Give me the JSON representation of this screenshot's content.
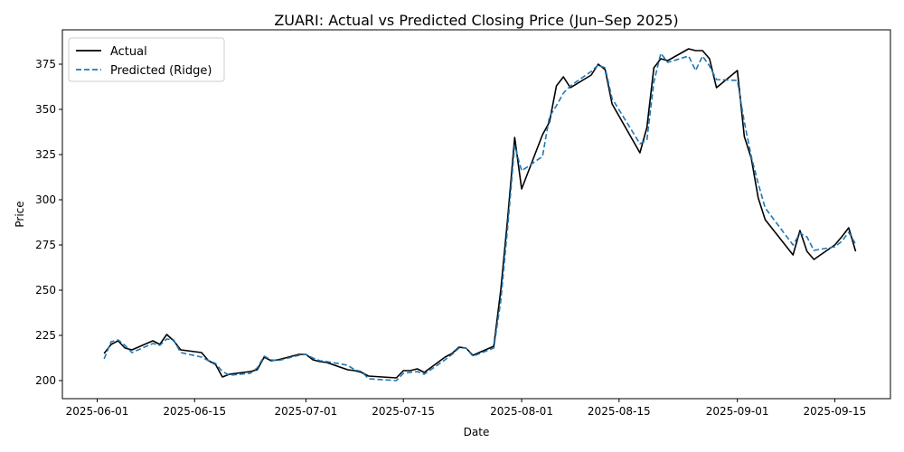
{
  "chart_data": {
    "type": "line",
    "title": "ZUARI: Actual vs Predicted Closing Price (Jun–Sep 2025)",
    "xlabel": "Date",
    "ylabel": "Price",
    "x_axis_type": "date",
    "xlim": [
      "2025-05-27",
      "2025-09-23"
    ],
    "ylim": [
      190,
      394
    ],
    "xticks": [
      "2025-06-01",
      "2025-06-15",
      "2025-07-01",
      "2025-07-15",
      "2025-08-01",
      "2025-08-15",
      "2025-09-01",
      "2025-09-15"
    ],
    "yticks": [
      200,
      225,
      250,
      275,
      300,
      325,
      350,
      375
    ],
    "grid": false,
    "legend_position": "top-left",
    "series": [
      {
        "name": "Actual",
        "color": "#000000",
        "line_style": "solid",
        "points": [
          [
            "2025-06-02",
            215
          ],
          [
            "2025-06-03",
            220
          ],
          [
            "2025-06-04",
            222
          ],
          [
            "2025-06-05",
            218
          ],
          [
            "2025-06-06",
            217
          ],
          [
            "2025-06-09",
            222
          ],
          [
            "2025-06-10",
            220
          ],
          [
            "2025-06-11",
            225.5
          ],
          [
            "2025-06-12",
            222
          ],
          [
            "2025-06-13",
            217
          ],
          [
            "2025-06-16",
            215.5
          ],
          [
            "2025-06-17",
            211
          ],
          [
            "2025-06-18",
            209
          ],
          [
            "2025-06-19",
            202
          ],
          [
            "2025-06-20",
            203.5
          ],
          [
            "2025-06-23",
            205
          ],
          [
            "2025-06-24",
            206
          ],
          [
            "2025-06-25",
            213
          ],
          [
            "2025-06-26",
            211
          ],
          [
            "2025-06-27",
            211.5
          ],
          [
            "2025-06-30",
            214.5
          ],
          [
            "2025-07-01",
            214.5
          ],
          [
            "2025-07-02",
            211.5
          ],
          [
            "2025-07-03",
            210.5
          ],
          [
            "2025-07-04",
            210
          ],
          [
            "2025-07-07",
            206
          ],
          [
            "2025-07-08",
            205.5
          ],
          [
            "2025-07-09",
            204.5
          ],
          [
            "2025-07-10",
            202.5
          ],
          [
            "2025-07-14",
            201.5
          ],
          [
            "2025-07-15",
            205.5
          ],
          [
            "2025-07-16",
            205.5
          ],
          [
            "2025-07-17",
            206.5
          ],
          [
            "2025-07-18",
            204.5
          ],
          [
            "2025-07-21",
            213
          ],
          [
            "2025-07-22",
            215
          ],
          [
            "2025-07-23",
            218.5
          ],
          [
            "2025-07-24",
            218
          ],
          [
            "2025-07-25",
            214
          ],
          [
            "2025-07-28",
            219
          ],
          [
            "2025-07-29",
            250
          ],
          [
            "2025-07-30",
            290
          ],
          [
            "2025-07-31",
            334.5
          ],
          [
            "2025-08-01",
            306
          ],
          [
            "2025-08-04",
            336
          ],
          [
            "2025-08-05",
            343
          ],
          [
            "2025-08-06",
            363
          ],
          [
            "2025-08-07",
            368
          ],
          [
            "2025-08-08",
            362
          ],
          [
            "2025-08-11",
            369
          ],
          [
            "2025-08-12",
            375
          ],
          [
            "2025-08-13",
            372
          ],
          [
            "2025-08-14",
            353
          ],
          [
            "2025-08-18",
            326
          ],
          [
            "2025-08-19",
            340
          ],
          [
            "2025-08-20",
            373
          ],
          [
            "2025-08-21",
            378
          ],
          [
            "2025-08-22",
            377
          ],
          [
            "2025-08-25",
            383.5
          ],
          [
            "2025-08-26",
            382.5
          ],
          [
            "2025-08-27",
            382.5
          ],
          [
            "2025-08-28",
            378
          ],
          [
            "2025-08-29",
            362
          ],
          [
            "2025-09-01",
            371.5
          ],
          [
            "2025-09-02",
            335
          ],
          [
            "2025-09-03",
            323
          ],
          [
            "2025-09-04",
            301
          ],
          [
            "2025-09-05",
            289
          ],
          [
            "2025-09-09",
            269.5
          ],
          [
            "2025-09-10",
            283
          ],
          [
            "2025-09-11",
            271.5
          ],
          [
            "2025-09-12",
            267
          ],
          [
            "2025-09-15",
            275
          ],
          [
            "2025-09-16",
            279.5
          ],
          [
            "2025-09-17",
            284.5
          ],
          [
            "2025-09-18",
            271.5
          ]
        ]
      },
      {
        "name": "Predicted (Ridge)",
        "color": "#1f77b4",
        "line_style": "dashed",
        "points": [
          [
            "2025-06-02",
            212
          ],
          [
            "2025-06-03",
            221.5
          ],
          [
            "2025-06-04",
            222.5
          ],
          [
            "2025-06-05",
            219.5
          ],
          [
            "2025-06-06",
            215.5
          ],
          [
            "2025-06-09",
            220.5
          ],
          [
            "2025-06-10",
            219.5
          ],
          [
            "2025-06-11",
            223
          ],
          [
            "2025-06-12",
            222.5
          ],
          [
            "2025-06-13",
            215.5
          ],
          [
            "2025-06-16",
            213
          ],
          [
            "2025-06-17",
            211
          ],
          [
            "2025-06-18",
            209.5
          ],
          [
            "2025-06-19",
            205
          ],
          [
            "2025-06-20",
            203
          ],
          [
            "2025-06-23",
            204
          ],
          [
            "2025-06-24",
            207
          ],
          [
            "2025-06-25",
            213.5
          ],
          [
            "2025-06-26",
            211.5
          ],
          [
            "2025-06-27",
            211
          ],
          [
            "2025-06-30",
            214
          ],
          [
            "2025-07-01",
            214.5
          ],
          [
            "2025-07-02",
            212.5
          ],
          [
            "2025-07-03",
            211
          ],
          [
            "2025-07-04",
            210.5
          ],
          [
            "2025-07-07",
            208.5
          ],
          [
            "2025-07-08",
            206
          ],
          [
            "2025-07-09",
            205
          ],
          [
            "2025-07-10",
            201
          ],
          [
            "2025-07-14",
            200
          ],
          [
            "2025-07-15",
            204
          ],
          [
            "2025-07-16",
            204.5
          ],
          [
            "2025-07-17",
            205
          ],
          [
            "2025-07-18",
            203.5
          ],
          [
            "2025-07-21",
            211.5
          ],
          [
            "2025-07-22",
            214.5
          ],
          [
            "2025-07-23",
            218
          ],
          [
            "2025-07-24",
            218
          ],
          [
            "2025-07-25",
            213.5
          ],
          [
            "2025-07-28",
            218
          ],
          [
            "2025-07-29",
            244
          ],
          [
            "2025-07-30",
            285
          ],
          [
            "2025-07-31",
            330
          ],
          [
            "2025-08-01",
            316
          ],
          [
            "2025-08-04",
            324
          ],
          [
            "2025-08-05",
            346
          ],
          [
            "2025-08-06",
            352
          ],
          [
            "2025-08-07",
            359
          ],
          [
            "2025-08-08",
            363
          ],
          [
            "2025-08-11",
            371
          ],
          [
            "2025-08-12",
            374.5
          ],
          [
            "2025-08-13",
            373
          ],
          [
            "2025-08-14",
            356
          ],
          [
            "2025-08-18",
            331
          ],
          [
            "2025-08-19",
            333
          ],
          [
            "2025-08-20",
            365
          ],
          [
            "2025-08-21",
            381
          ],
          [
            "2025-08-22",
            376
          ],
          [
            "2025-08-25",
            379.5
          ],
          [
            "2025-08-26",
            371.5
          ],
          [
            "2025-08-27",
            379.5
          ],
          [
            "2025-08-28",
            374
          ],
          [
            "2025-08-29",
            366.5
          ],
          [
            "2025-09-01",
            366
          ],
          [
            "2025-09-02",
            343
          ],
          [
            "2025-09-03",
            324
          ],
          [
            "2025-09-04",
            309
          ],
          [
            "2025-09-05",
            295.5
          ],
          [
            "2025-09-09",
            275
          ],
          [
            "2025-09-10",
            281.5
          ],
          [
            "2025-09-11",
            279.5
          ],
          [
            "2025-09-12",
            272
          ],
          [
            "2025-09-15",
            274
          ],
          [
            "2025-09-16",
            277
          ],
          [
            "2025-09-17",
            282
          ],
          [
            "2025-09-18",
            275.5
          ]
        ]
      }
    ]
  }
}
